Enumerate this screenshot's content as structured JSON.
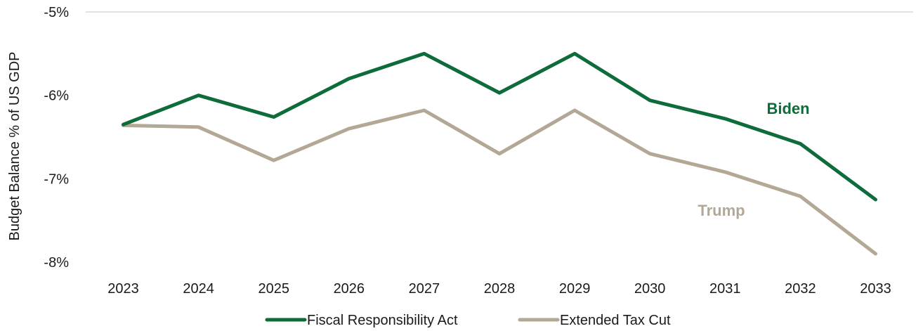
{
  "chart_data": {
    "type": "line",
    "title": "",
    "xlabel": "",
    "ylabel": "Budget Balance % of US GDP",
    "ylim": [
      -8,
      -5
    ],
    "y_ticks": [
      -5,
      -6,
      -7,
      -8
    ],
    "y_tick_labels": [
      "-5%",
      "-6%",
      "-7%",
      "-8%"
    ],
    "categories": [
      "2023",
      "2024",
      "2025",
      "2026",
      "2027",
      "2028",
      "2029",
      "2030",
      "2031",
      "2032",
      "2033"
    ],
    "series": [
      {
        "name": "Fiscal Responsibility Act",
        "color": "#0e6b3a",
        "values": [
          -6.35,
          -6.0,
          -6.26,
          -5.8,
          -5.5,
          -5.97,
          -5.5,
          -6.06,
          -6.28,
          -6.58,
          -7.25
        ]
      },
      {
        "name": "Extended Tax Cut",
        "color": "#b3a796",
        "values": [
          -6.36,
          -6.38,
          -6.78,
          -6.4,
          -6.18,
          -6.7,
          -6.18,
          -6.7,
          -6.92,
          -7.21,
          -7.9
        ]
      }
    ],
    "annotations": [
      {
        "text": "Biden",
        "color": "#0e6b3a"
      },
      {
        "text": "Trump",
        "color": "#b3a796"
      }
    ],
    "grid": "horizontal-top-only",
    "legend_position": "bottom"
  }
}
